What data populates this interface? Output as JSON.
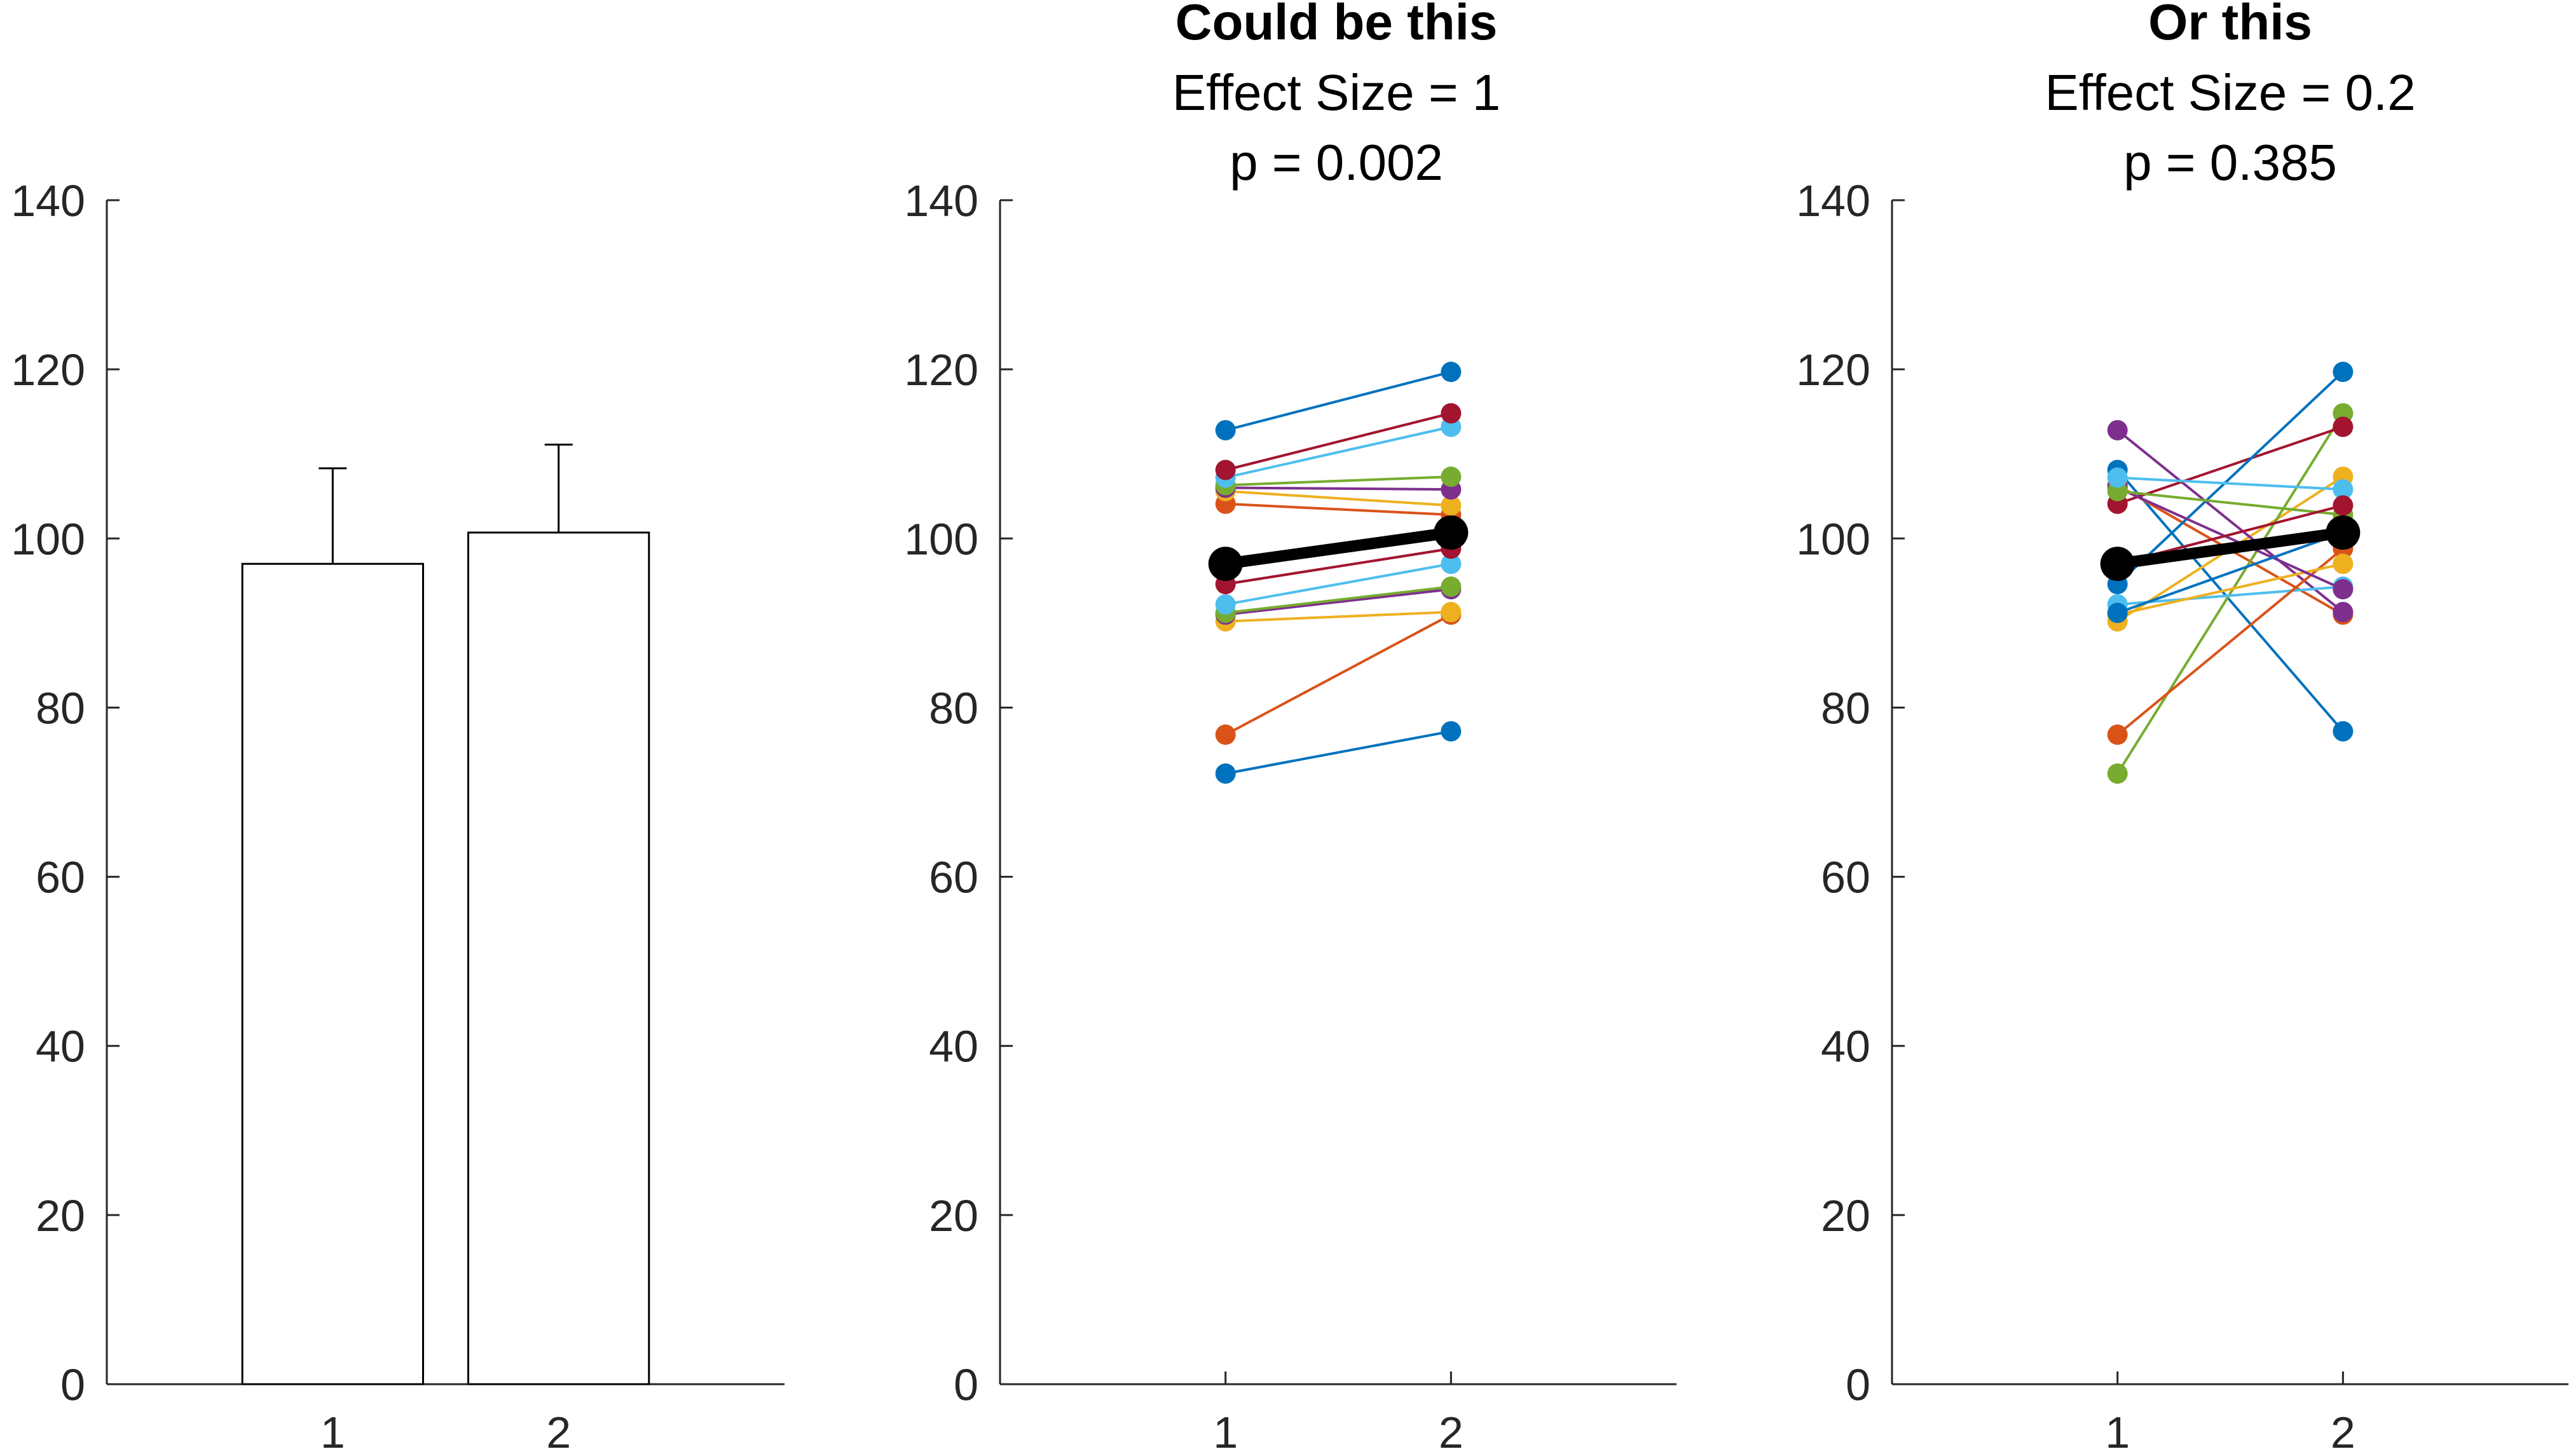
{
  "palette": [
    "#0072BD",
    "#D95319",
    "#EDB120",
    "#7E2F8E",
    "#77AC30",
    "#4DBEEE",
    "#A2142F"
  ],
  "mean_color": "#000000",
  "chart_data": [
    {
      "type": "bar",
      "title": "",
      "subtitle_lines": [],
      "categories": [
        "1",
        "2"
      ],
      "values": [
        97,
        100.7
      ],
      "error_upper": [
        108.3,
        111.1
      ],
      "ylim": [
        0,
        140
      ],
      "yticks": [
        "0",
        "20",
        "40",
        "60",
        "80",
        "100",
        "120",
        "140"
      ],
      "xticks": [
        "1",
        "2"
      ]
    },
    {
      "type": "line",
      "title": "Could be this",
      "subtitle_lines": [
        "Effect Size = 1",
        "p = 0.002"
      ],
      "x": [
        1,
        2
      ],
      "ylim": [
        0,
        140
      ],
      "yticks": [
        "0",
        "20",
        "40",
        "60",
        "80",
        "100",
        "120",
        "140"
      ],
      "xticks": [
        "1",
        "2"
      ],
      "series": [
        {
          "values": [
            72.2,
            77.2
          ]
        },
        {
          "values": [
            76.8,
            91.0
          ]
        },
        {
          "values": [
            90.2,
            91.3
          ]
        },
        {
          "values": [
            91.0,
            94.0
          ]
        },
        {
          "values": [
            91.2,
            94.3
          ]
        },
        {
          "values": [
            92.2,
            97.0
          ]
        },
        {
          "values": [
            94.6,
            98.8
          ]
        },
        {
          "values": [
            97.0,
            100.7
          ]
        },
        {
          "values": [
            104.1,
            102.8
          ]
        },
        {
          "values": [
            105.6,
            103.9
          ]
        },
        {
          "values": [
            106.0,
            105.8
          ]
        },
        {
          "values": [
            106.3,
            107.3
          ]
        },
        {
          "values": [
            107.2,
            113.2
          ]
        },
        {
          "values": [
            108.1,
            114.8
          ]
        },
        {
          "values": [
            112.8,
            119.7
          ]
        }
      ],
      "mean": [
        97.0,
        100.7
      ]
    },
    {
      "type": "line",
      "title": "Or this",
      "subtitle_lines": [
        "Effect Size = 0.2",
        "p = 0.385"
      ],
      "x": [
        1,
        2
      ],
      "ylim": [
        0,
        140
      ],
      "yticks": [
        "0",
        "20",
        "40",
        "60",
        "80",
        "100",
        "120",
        "140"
      ],
      "xticks": [
        "1",
        "2"
      ],
      "series": [
        {
          "values": [
            108.1,
            77.2
          ]
        },
        {
          "values": [
            106.3,
            91.0
          ]
        },
        {
          "values": [
            90.2,
            107.3
          ]
        },
        {
          "values": [
            112.8,
            91.3
          ]
        },
        {
          "values": [
            72.2,
            114.8
          ]
        },
        {
          "values": [
            92.2,
            94.3
          ]
        },
        {
          "values": [
            104.1,
            113.2
          ]
        },
        {
          "values": [
            94.6,
            119.7
          ]
        },
        {
          "values": [
            76.8,
            98.8
          ]
        },
        {
          "values": [
            91.0,
            97.0
          ]
        },
        {
          "values": [
            106.0,
            94.0
          ]
        },
        {
          "values": [
            105.6,
            102.8
          ]
        },
        {
          "values": [
            107.2,
            105.8
          ]
        },
        {
          "values": [
            97.0,
            103.9
          ]
        },
        {
          "values": [
            91.2,
            100.7
          ]
        }
      ],
      "mean": [
        97.0,
        100.7
      ]
    }
  ]
}
